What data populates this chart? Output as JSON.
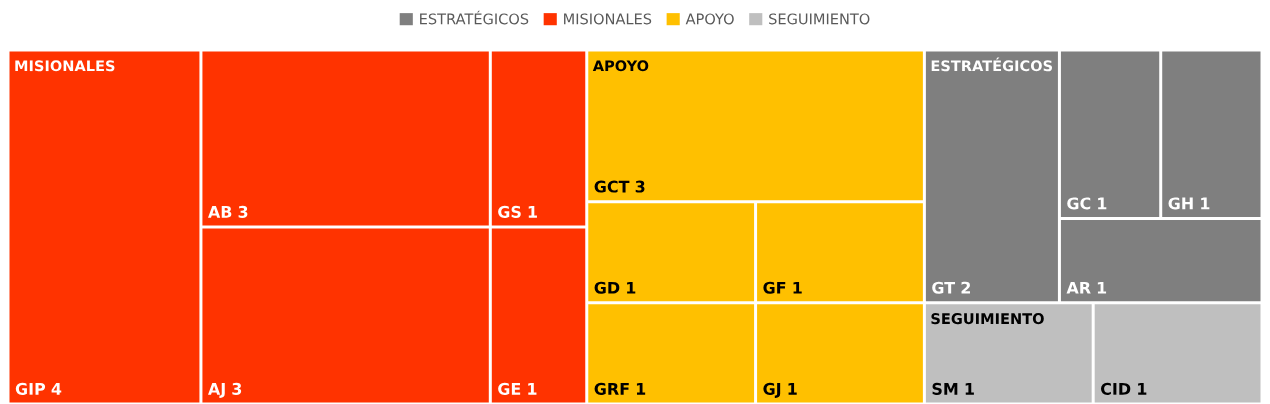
{
  "chart_data": {
    "type": "other",
    "legend": "top",
    "data_labels": true,
    "categories": [
      "GT",
      "GC",
      "GH",
      "AR",
      "GIP",
      "AB",
      "AJ",
      "GS",
      "GE",
      "GCT",
      "GD",
      "GRF",
      "GF",
      "GJ",
      "SM",
      "CID"
    ],
    "series": [
      {
        "name": "ESTRATÉGICOS",
        "color": "#7f7f7f",
        "values": [
          2,
          1,
          1,
          1,
          null,
          null,
          null,
          null,
          null,
          null,
          null,
          null,
          null,
          null,
          null,
          null
        ]
      },
      {
        "name": "MISIONALES",
        "color": "#ff3300",
        "values": [
          null,
          null,
          null,
          null,
          4,
          3,
          3,
          1,
          1,
          null,
          null,
          null,
          null,
          null,
          null,
          null
        ]
      },
      {
        "name": "APOYO",
        "color": "#ffc000",
        "values": [
          null,
          null,
          null,
          null,
          null,
          null,
          null,
          null,
          null,
          3,
          1,
          1,
          1,
          1,
          null,
          null
        ]
      },
      {
        "name": "SEGUIMIENTO",
        "color": "#bfbfbf",
        "values": [
          null,
          null,
          null,
          null,
          null,
          null,
          null,
          null,
          null,
          null,
          null,
          null,
          null,
          null,
          1,
          1
        ]
      }
    ]
  }
}
